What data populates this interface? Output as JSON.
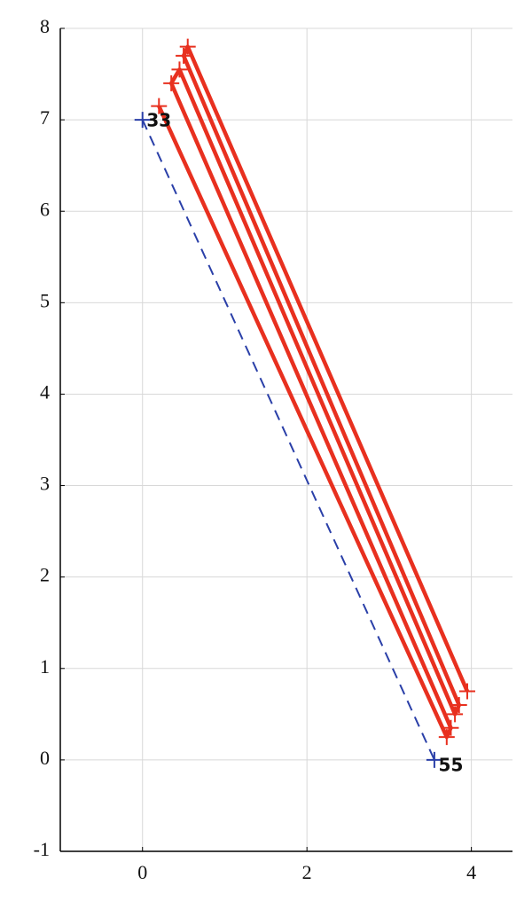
{
  "chart_data": {
    "type": "line",
    "xlim": [
      -1,
      4.5
    ],
    "ylim": [
      -1,
      8
    ],
    "xticks": [
      0,
      2,
      4
    ],
    "yticks": [
      -1,
      0,
      1,
      2,
      3,
      4,
      5,
      6,
      7,
      8
    ],
    "grid": true,
    "series": [
      {
        "color": "#2a3fa8",
        "dash": true,
        "x": [
          0,
          3.55
        ],
        "values": [
          7,
          0
        ]
      },
      {
        "color": "#e8301f",
        "dash": false,
        "x": [
          0.2,
          3.7,
          3.75,
          0.35,
          0.45,
          3.8,
          3.85,
          0.5,
          0.55,
          3.95
        ],
        "values": [
          7.15,
          0.25,
          0.35,
          7.4,
          7.55,
          0.5,
          0.6,
          7.7,
          7.8,
          0.75
        ]
      }
    ],
    "annotations": [
      {
        "text": "33",
        "x": 0.05,
        "y": 7
      },
      {
        "text": "55",
        "x": 3.6,
        "y": -0.05
      }
    ]
  }
}
